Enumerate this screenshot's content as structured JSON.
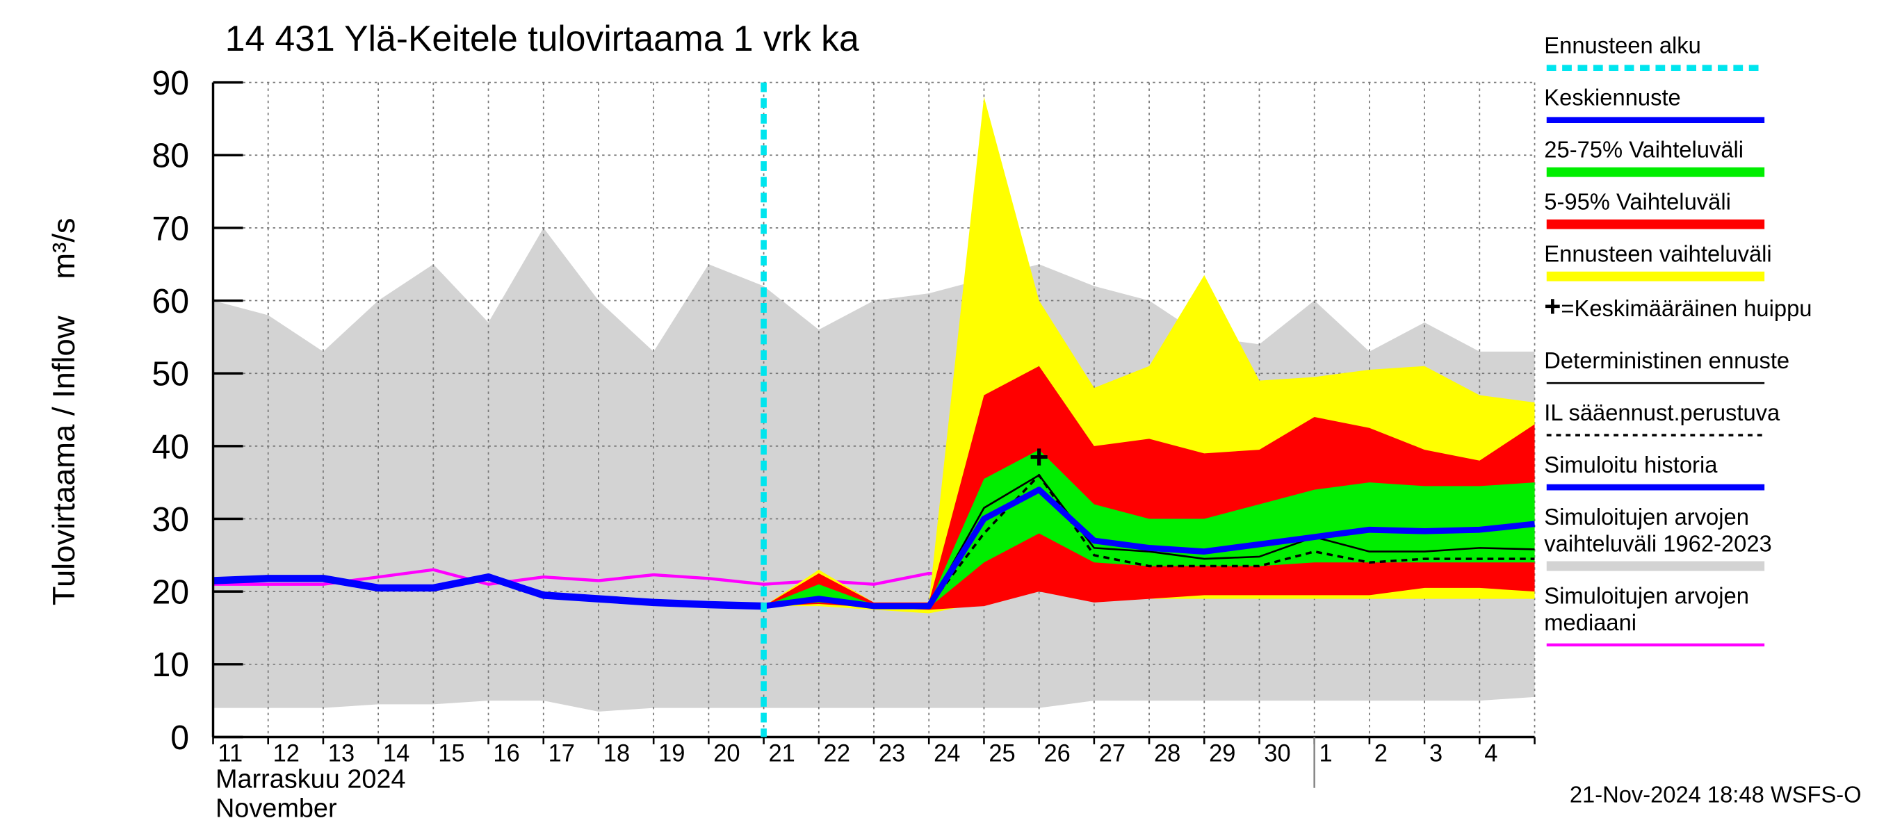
{
  "chart_data": {
    "type": "forecast-bands",
    "title": "14 431 Ylä-Keitele tulovirtaama 1 vrk ka",
    "ylabel": "Tulovirtaama / Inflow",
    "yunit": "m³/s",
    "month_label": "Marraskuu 2024",
    "month_label_en": "November",
    "footer": "21-Nov-2024 18:48 WSFS-O",
    "categories": [
      "11",
      "12",
      "13",
      "14",
      "15",
      "16",
      "17",
      "18",
      "19",
      "20",
      "21",
      "22",
      "23",
      "24",
      "25",
      "26",
      "27",
      "28",
      "29",
      "30",
      "1",
      "2",
      "3",
      "4",
      null
    ],
    "month_start": "1",
    "ylim": [
      0,
      90
    ],
    "yticks": [
      0,
      10,
      20,
      30,
      40,
      50,
      60,
      70,
      80,
      90
    ],
    "grid": true,
    "forecast_start": {
      "name": "Ennusteen alku",
      "color": "#00e5ee",
      "category": "21"
    },
    "peak": {
      "name": "=Keskimääräinen huippu",
      "category": "26",
      "value": 38.5
    },
    "series": [
      {
        "name": "Keskiennuste",
        "kind": "line",
        "color": "#0000ff",
        "values": [
          null,
          null,
          null,
          null,
          null,
          null,
          null,
          null,
          null,
          null,
          18,
          19,
          18,
          18,
          30,
          34,
          27,
          26,
          25.5,
          26.5,
          27.5,
          28.5,
          28.3,
          28.5,
          29.3
        ]
      },
      {
        "name": "25-75% Vaihteluväli",
        "kind": "band",
        "color": "#00ee00",
        "upper": [
          null,
          null,
          null,
          null,
          null,
          null,
          null,
          null,
          null,
          null,
          18,
          21,
          18.2,
          18.2,
          35.5,
          39.5,
          32,
          30,
          30,
          32,
          34,
          35,
          34.5,
          34.5,
          35
        ],
        "lower": [
          null,
          null,
          null,
          null,
          null,
          null,
          null,
          null,
          null,
          null,
          18,
          18.5,
          18,
          17.8,
          24,
          28,
          24,
          23.5,
          23.5,
          23.5,
          24,
          24,
          24,
          24,
          24
        ]
      },
      {
        "name": "5-95% Vaihteluväli",
        "kind": "band",
        "color": "#ff0000",
        "upper": [
          null,
          null,
          null,
          null,
          null,
          null,
          null,
          null,
          null,
          null,
          18,
          22.5,
          18.5,
          18.5,
          47,
          51,
          40,
          41,
          39,
          39.5,
          44,
          42.5,
          39.5,
          38,
          43
        ],
        "lower": [
          null,
          null,
          null,
          null,
          null,
          null,
          null,
          null,
          null,
          null,
          18,
          18.3,
          17.8,
          17.5,
          18,
          20,
          18.5,
          19,
          19.5,
          19.5,
          19.5,
          19.5,
          20.5,
          20.5,
          20
        ]
      },
      {
        "name": "Ennusteen vaihteluväli",
        "kind": "band",
        "color": "#ffff00",
        "upper": [
          null,
          null,
          null,
          null,
          null,
          null,
          null,
          null,
          null,
          null,
          18,
          23,
          18.5,
          18.5,
          88,
          60,
          48,
          51,
          63.5,
          49,
          49.5,
          50.5,
          51,
          47,
          46
        ],
        "lower": [
          null,
          null,
          null,
          null,
          null,
          null,
          null,
          null,
          null,
          null,
          18,
          18,
          17.5,
          17,
          18.5,
          20,
          19,
          19,
          19,
          19,
          19,
          19,
          19,
          19,
          19
        ]
      },
      {
        "name": "Deterministinen ennuste",
        "kind": "line",
        "color": "#000000",
        "values": [
          null,
          null,
          null,
          null,
          null,
          null,
          null,
          null,
          null,
          null,
          18,
          19,
          18,
          18,
          31.5,
          36,
          26,
          25.5,
          24.5,
          24.8,
          27.5,
          25.5,
          25.5,
          26,
          25.8
        ]
      },
      {
        "name": "IL sääennust.perustuva",
        "kind": "line",
        "color": "#000000",
        "line_style": "dashed",
        "values": [
          null,
          null,
          null,
          null,
          null,
          null,
          null,
          null,
          null,
          null,
          18,
          18.8,
          18,
          18,
          28,
          36,
          25,
          23.5,
          23.5,
          23.5,
          25.5,
          24,
          24.5,
          24.5,
          24.5
        ]
      },
      {
        "name": "Simuloitu historia",
        "kind": "line",
        "color": "#0000ff",
        "values": [
          21.5,
          21.8,
          21.8,
          20.5,
          20.5,
          22,
          19.5,
          19,
          18.5,
          18.2,
          18,
          null,
          null,
          null,
          null,
          null,
          null,
          null,
          null,
          null,
          null,
          null,
          null,
          null,
          null
        ]
      },
      {
        "name": "Simuloitujen arvojen vaihteluväli 1962-2023",
        "kind": "band",
        "color": "#d3d3d3",
        "upper": [
          60,
          58,
          53,
          60,
          65,
          57,
          70,
          60,
          53,
          65,
          62,
          56,
          60,
          61,
          63,
          65,
          62,
          60,
          55,
          54,
          60,
          53,
          57,
          53,
          53
        ],
        "lower": [
          4,
          4,
          4,
          4.5,
          4.5,
          5,
          5,
          3.5,
          4,
          4,
          4,
          4,
          4,
          4,
          4,
          4,
          5,
          5,
          5,
          5,
          5,
          5,
          5,
          5,
          5.5
        ]
      },
      {
        "name": "Simuloitujen arvojen mediaani",
        "kind": "line",
        "color": "#ff00ff",
        "values": [
          21,
          21,
          21,
          22,
          23,
          21,
          22,
          21.5,
          22.3,
          21.8,
          21,
          21.5,
          21,
          22.5,
          22,
          21.5,
          21,
          20.5,
          21.5,
          21,
          21,
          21.5,
          21,
          22,
          21
        ]
      }
    ]
  }
}
